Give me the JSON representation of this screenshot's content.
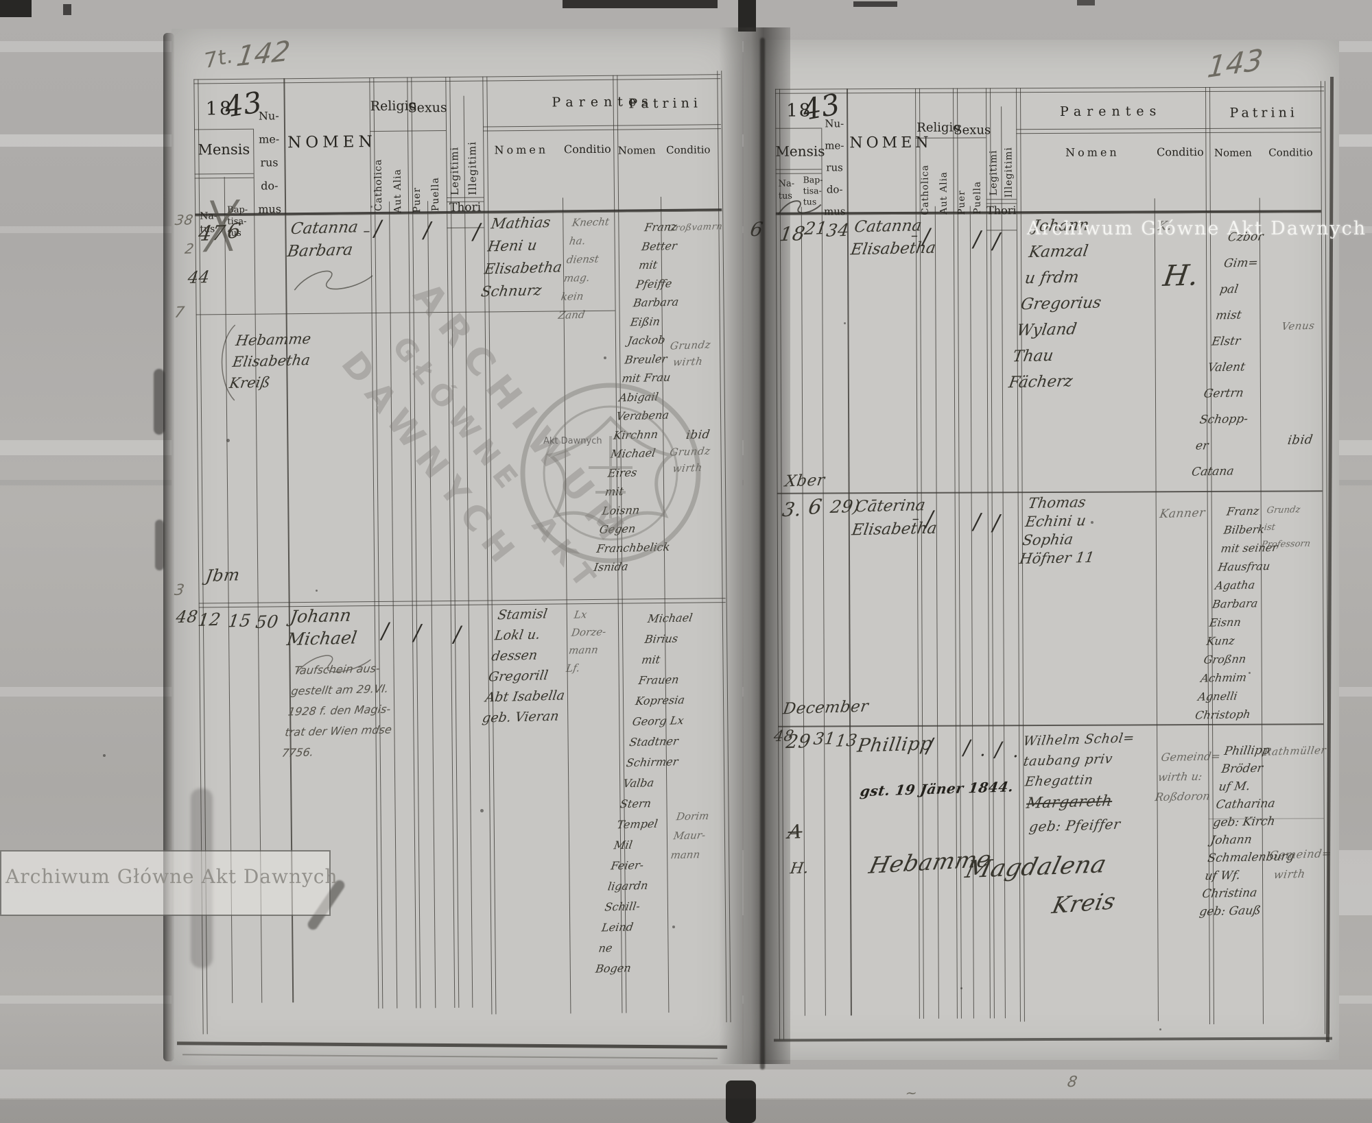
{
  "glyphs": {
    "tick": "∕",
    "dash": "–",
    "cross": "╳",
    "dot": "."
  },
  "watermark": {
    "line_top": "Archiwum Główne Akt Dawnych",
    "line_bottom": "Archiwum Główne Akt Dawnych",
    "big1": "ARCHIWUM",
    "big2": "GŁÓWNE",
    "big3": "AKT",
    "big4": "DAWNYCH",
    "small": "Akt Dawnych"
  },
  "marks": {
    "page_no_left": "142",
    "page_left_flourish": "7t.",
    "page_no_right": "143",
    "binding_digit": "6",
    "left_margin": [
      "38",
      "2",
      "44",
      "7",
      "3"
    ],
    "jbm": "Jbm",
    "bottom_1": "8",
    "bottom_2": "~"
  },
  "headers": {
    "year_printed": "18",
    "year_hand": "43",
    "mensis": "Mensis",
    "natus_1": "Na-",
    "natus_2": "tus",
    "bapt_1": "Bap-",
    "bapt_2": "tisa-",
    "bapt_3": "tus",
    "numerus": [
      "Nu-",
      "me-",
      "rus",
      "do-",
      "mus"
    ],
    "nomen": "NOMEN",
    "religio": "Religio",
    "sexus": "Sexus",
    "catholica": "Catholica",
    "aut_alia": "Aut Alia",
    "puer": "Puer",
    "puella": "Puella",
    "legitimi": "Legitimi",
    "illegitimi": "Illegitimi",
    "thori": "Thori",
    "parentes": "Parentes",
    "patrini": "Patrini",
    "sub_nomen": "Nomen",
    "sub_conditio": "Conditio"
  },
  "left_page": {
    "r1": {
      "natus": "47",
      "baptisatus": "6",
      "nomen": [
        "Catanna",
        "Barbara"
      ],
      "parentes_nomen": [
        "Mathias",
        "Heni u",
        "Elisabetha",
        "Schnurz"
      ],
      "parentes_conditio": [
        "Knecht",
        "ha.",
        "dienst",
        "mag.",
        "kein",
        "Zand"
      ],
      "patrini_nomen": [
        "Franz",
        "Better",
        "mit",
        "Pfeiffe",
        "Barbara",
        "Eißin",
        "Jackob",
        "Breuler",
        "mit Frau",
        "Abigail",
        "Verabena",
        "Kirchnn",
        "Michael",
        "Eires",
        "mit",
        "Loisnn",
        "Gegen",
        "Franchbelick",
        "Isnida"
      ],
      "patrini_conditio_1": "Großvamrn",
      "patrini_conditio_2": "Grundz",
      "patrini_conditio_3": "wirth",
      "patrini_conditio_4": "ibid",
      "patrini_conditio_5": "Grundz",
      "patrini_conditio_6": "wirth"
    },
    "midwife": [
      "Hebamme",
      "Elisabetha",
      "Kreiß"
    ],
    "r2": {
      "margin": "48",
      "natus": "12",
      "baptisatus": "15",
      "domus": "50",
      "nomen": [
        "Johann",
        "Michael"
      ],
      "note": [
        "Taufschein aus-",
        "gestellt am 29.VI.",
        "1928 f. den Magis-",
        "trat der Wien mdse",
        "7756."
      ],
      "parentes_nomen": [
        "Stamisl",
        "Lokl u.",
        "dessen",
        "Gregorill",
        "Abt Isabella",
        "geb. Vieran"
      ],
      "parentes_conditio": [
        "Lx",
        "Dorze-",
        "mann",
        "Lf."
      ],
      "patrini_nomen": [
        "Michael",
        "Birius",
        "mit",
        "Frauen",
        "Kopresia",
        "Georg Lx",
        "Stadtner",
        "Schirmer",
        "Valba",
        "Stern",
        "Tempel",
        "Mil",
        "Feier-",
        "ligardn",
        "Schill-",
        "Leind",
        "ne",
        "Bogen"
      ],
      "patrini_conditio": [
        "Dorim",
        "Maur-",
        "mann"
      ]
    }
  },
  "right_page": {
    "r1": {
      "natus": "18",
      "baptisatus": "21",
      "domus": "34",
      "nomen": [
        "Catanna",
        "Elisabetha"
      ],
      "parentes_nomen": [
        "Johann",
        "Kamzal",
        "u frdm",
        "Gregorius",
        "Wyland",
        "Thau",
        "Fächerz"
      ],
      "parentes_conditio_small": "K.",
      "parentes_conditio_big": "H.",
      "patrini_nomen": [
        "Czbor",
        "Gim=",
        "pal",
        "mist",
        "Elstr",
        "Valent",
        "Gertrn",
        "Schopp-",
        "er",
        "Catana"
      ],
      "patrini_conditio_1": "Venus",
      "patrini_conditio_2": "ibid"
    },
    "month_note": "Xber",
    "r2": {
      "natus": "3.",
      "baptisatus": "6",
      "domus": "29)",
      "nomen": [
        "Cāterina",
        "Elisabetha"
      ],
      "parentes_nomen": [
        "Thomas",
        "Echini u",
        "Sophia",
        "Höfner 11"
      ],
      "parentes_conditio": "Kanner",
      "patrini_nomen": [
        "Franz",
        "Bilberk",
        "mit seiner",
        "Hausfrau",
        "Agatha",
        "Barbara",
        "Eisnn",
        "Kunz",
        "Großnn",
        "Achmim",
        "Agnelli",
        "Christoph"
      ],
      "patrini_conditio": [
        "Grundz",
        "ist",
        "Professorn"
      ]
    },
    "month_note_2": "December",
    "r3": {
      "margin": "48",
      "natus": "29",
      "baptisatus": "31",
      "domus": "13",
      "nomen": "Phillipp",
      "death_note": "gst. 19 Jäner 1844.",
      "monogram_1": "A",
      "monogram_2": "H.",
      "midwife_1": "Hebamme",
      "midwife_2": "Magdalena",
      "midwife_3": "Kreis",
      "parentes_l1": "Wilhelm Schol=",
      "parentes_l2": "taubang priv",
      "parentes_l3": "Ehegattin",
      "parentes_l4": "Margareth",
      "parentes_l5": "geb: Pfeiffer",
      "parentes_conditio": [
        "Gemeind=",
        "wirth u:",
        "Roßdoron"
      ],
      "patrini_nomen": [
        "Phillipp",
        "Bröder",
        "uf M.",
        "Catharina",
        "geb: Kirch",
        "Johann",
        "Schmalenburg",
        "uf Wf.",
        "Christina",
        "geb: Gauß"
      ],
      "patrini_conditio_1": "Rathmüller",
      "patrini_conditio_2": "Gemeind=",
      "patrini_conditio_3": "wirth"
    }
  }
}
